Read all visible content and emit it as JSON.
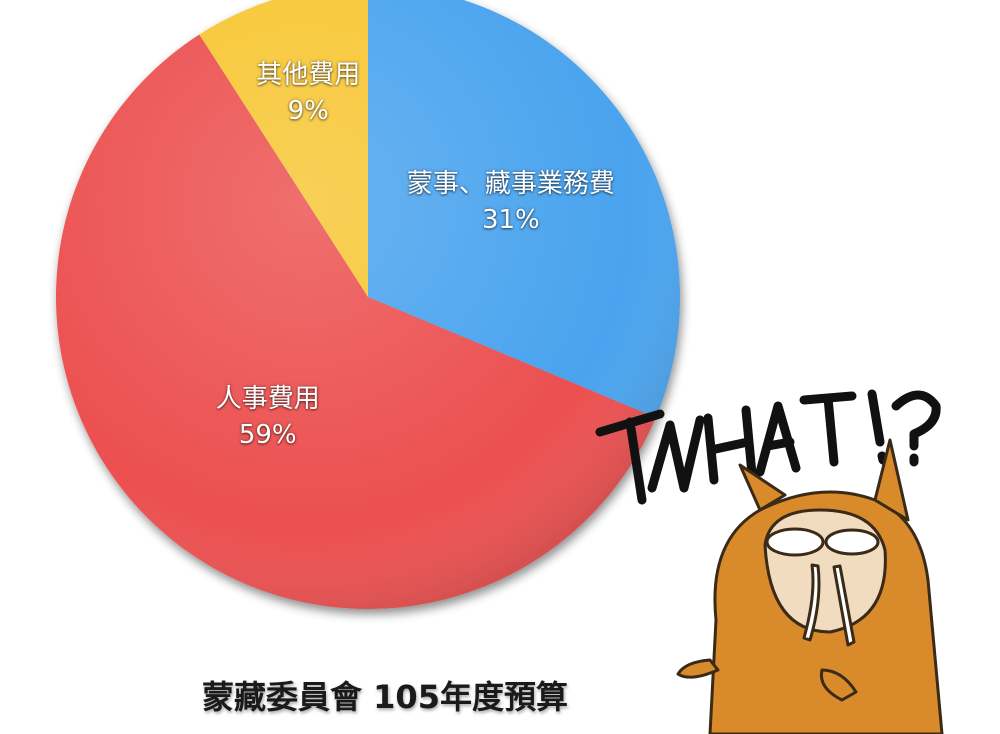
{
  "chart_data": {
    "type": "pie",
    "title": "蒙藏委員會 105年度預算",
    "slices": [
      {
        "label": "蒙事、藏事業務費",
        "percent_label": "31%",
        "value": 31,
        "color": "#4aa3ee"
      },
      {
        "label": "人事費用",
        "percent_label": "59%",
        "value": 59,
        "color": "#ec4f4f"
      },
      {
        "label": "其他費用",
        "percent_label": "9%",
        "value": 9,
        "color": "#f7c630"
      }
    ],
    "legend": "none",
    "labels_position": "inside"
  },
  "sticker": {
    "text": "WHAT!?",
    "icon": "surprised-walrus-mascot-icon",
    "fur_color": "#d98a2b"
  }
}
